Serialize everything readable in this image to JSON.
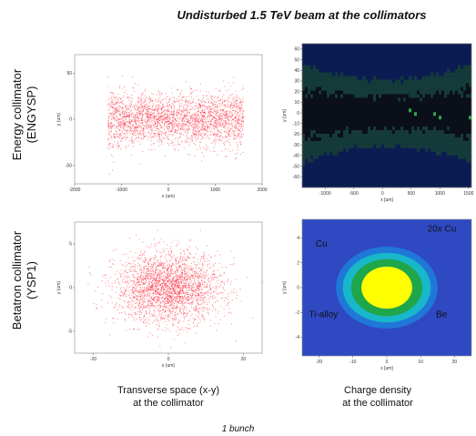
{
  "figure": {
    "title": "Undisturbed 1.5 TeV beam at the collimators",
    "row_labels": {
      "top_line1": "Energy collimator",
      "top_line2": "(ENGYSP)",
      "bottom_line1": "Betatron collimator",
      "bottom_line2": "(YSP1)"
    },
    "captions": {
      "left_line1": "Transverse space (x-y)",
      "left_line2": "at the collimator",
      "right_line1": "Charge density",
      "right_line2": "at the collimator"
    },
    "footer": "1 bunch"
  },
  "chart_data": [
    {
      "id": "energy-transverse",
      "type": "scatter",
      "title": "",
      "xlabel": "x (um)",
      "ylabel": "y (um)",
      "xlim": [
        -2000,
        2000
      ],
      "ylim": [
        -70,
        70
      ],
      "xticks": [
        -2000,
        -1000,
        0,
        1000,
        2000
      ],
      "yticks": [
        -50,
        0,
        50
      ],
      "point_color": "#ff1a2e",
      "distribution": {
        "x_range": [
          -1300,
          1600
        ],
        "y_sigma": 17,
        "waist_sigma": 13
      }
    },
    {
      "id": "energy-density",
      "type": "heatmap",
      "title": "",
      "xlabel": "x [um]",
      "ylabel": "y [um]",
      "xlim": [
        -1400,
        1550
      ],
      "ylim": [
        -70,
        65
      ],
      "xticks": [
        -1000,
        -500,
        0,
        500,
        1000,
        1500
      ],
      "yticks": [
        -60,
        -50,
        -40,
        -30,
        -20,
        -10,
        0,
        10,
        20,
        30,
        40,
        50,
        60
      ],
      "colors": {
        "background": "#0b1c52",
        "low": "#0a0f1a",
        "mid": "#153a3a",
        "high": "#2ea84a"
      }
    },
    {
      "id": "betatron-transverse",
      "type": "scatter",
      "title": "",
      "xlabel": "x (um)",
      "ylabel": "y (um)",
      "xlim": [
        -25,
        25
      ],
      "ylim": [
        -7.5,
        7.5
      ],
      "xticks": [
        -20,
        0,
        20
      ],
      "yticks": [
        -5,
        0,
        5
      ],
      "point_color": "#ff1a2e",
      "distribution": {
        "x_sigma": 7,
        "y_sigma": 2
      }
    },
    {
      "id": "betatron-density",
      "type": "heatmap",
      "title": "",
      "xlabel": "x [um]",
      "ylabel": "y [um]",
      "xlim": [
        -25,
        25
      ],
      "ylim": [
        -5.5,
        5.5
      ],
      "xticks": [
        -20,
        -10,
        0,
        10,
        20
      ],
      "yticks": [
        -4,
        -2,
        0,
        2,
        4
      ],
      "contours": [
        {
          "label": "Ti-alloy",
          "rx": 15,
          "ry": 3.3,
          "color": "#1f78d8"
        },
        {
          "label": "Be",
          "rx": 13,
          "ry": 2.8,
          "color": "#18b7c9"
        },
        {
          "label": "Cu",
          "rx": 10.5,
          "ry": 2.3,
          "color": "#1fa64a"
        },
        {
          "label": "20x Cu",
          "rx": 7.5,
          "ry": 1.7,
          "color": "#ffff00"
        }
      ],
      "annotations": [
        "Cu",
        "20x Cu",
        "Ti-alloy",
        "Be"
      ],
      "background": "#2f49c2"
    }
  ]
}
